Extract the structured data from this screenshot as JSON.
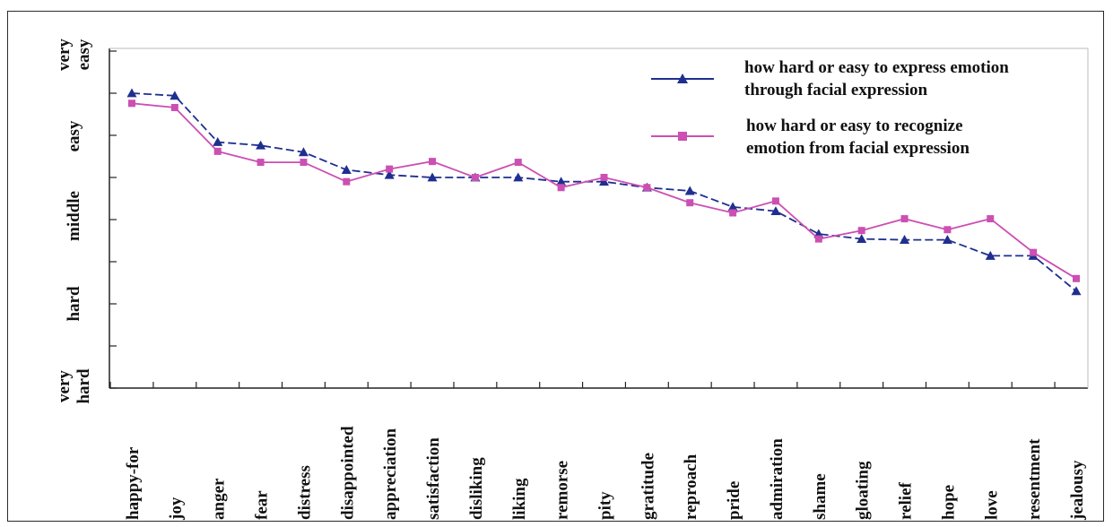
{
  "chart_data": {
    "type": "line",
    "title": "",
    "xlabel": "",
    "ylabel": "",
    "y_axis_labels": [
      {
        "lines": [
          "very",
          "hard"
        ],
        "value": 0
      },
      {
        "lines": [
          "hard"
        ],
        "value": 1
      },
      {
        "lines": [
          "middle"
        ],
        "value": 2
      },
      {
        "lines": [
          "easy"
        ],
        "value": 3
      },
      {
        "lines": [
          "very",
          "easy"
        ],
        "value": 4
      }
    ],
    "ylim": [
      0,
      4
    ],
    "grid": false,
    "legend_position": "top-right",
    "categories": [
      "happy-for",
      "joy",
      "anger",
      "fear",
      "distress",
      "disappointed",
      "appreciation",
      "satisfaction",
      "disliking",
      "liking",
      "remorse",
      "pity",
      "gratitude",
      "reproach",
      "pride",
      "admiration",
      "shame",
      "gloating",
      "relief",
      "hope",
      "love",
      "resentment",
      "jealousy"
    ],
    "series": [
      {
        "name": "how hard or easy to express emotion through facial expression",
        "legend_lines": [
          "how hard or easy to express emotion",
          "through facial expression"
        ],
        "color": "#1f2f8f",
        "marker": "triangle",
        "dash": true,
        "values": [
          3.5,
          3.47,
          2.92,
          2.88,
          2.8,
          2.59,
          2.53,
          2.5,
          2.5,
          2.5,
          2.45,
          2.45,
          2.38,
          2.34,
          2.15,
          2.1,
          1.83,
          1.77,
          1.76,
          1.76,
          1.57,
          1.57,
          1.15
        ]
      },
      {
        "name": "how hard or easy to recognize emotion from facial expression",
        "legend_lines": [
          "how hard or easy to recognize",
          "emotion from facial expression"
        ],
        "color": "#cc4fb3",
        "marker": "square",
        "dash": false,
        "values": [
          3.38,
          3.33,
          2.81,
          2.68,
          2.68,
          2.45,
          2.6,
          2.69,
          2.5,
          2.68,
          2.38,
          2.5,
          2.38,
          2.2,
          2.08,
          2.22,
          1.77,
          1.87,
          2.01,
          1.88,
          2.01,
          1.61,
          1.3
        ]
      }
    ]
  }
}
